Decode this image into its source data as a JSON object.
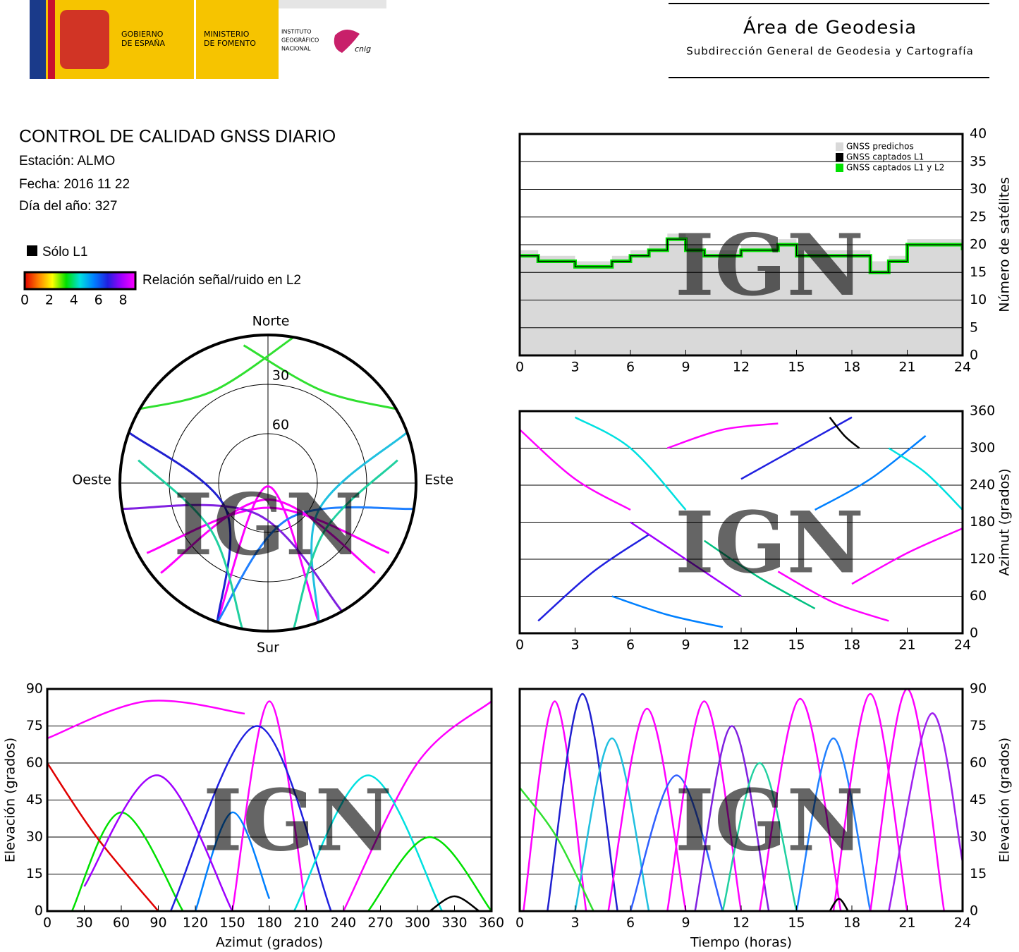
{
  "header": {
    "gov": [
      "GOBIERNO",
      "DE ESPAÑA"
    ],
    "ministry": [
      "MINISTERIO",
      "DE FOMENTO"
    ],
    "institute": [
      "INSTITUTO",
      "GEOGRÁFICO",
      "NACIONAL"
    ],
    "cnig": "cnig",
    "area": "Área de Geodesia",
    "sub": "Subdirección General de Geodesia y Cartografía"
  },
  "report": {
    "title": "CONTROL DE CALIDAD GNSS DIARIO",
    "station": "Estación: ALMO",
    "date": "Fecha: 2016 11 22",
    "doy": "Día del año: 327"
  },
  "legend": {
    "l1_only": "Sólo L1",
    "l1_color": "#000000",
    "colorbar": {
      "label": "Relación señal/ruido en L2",
      "ticks": [
        0,
        2,
        4,
        6,
        8
      ],
      "lim": [
        0,
        9
      ],
      "colors": [
        "#e00000",
        "#ff8000",
        "#ffff00",
        "#00e000",
        "#00e0e0",
        "#0080ff",
        "#2020e0",
        "#a000ff",
        "#ff00ff"
      ]
    }
  },
  "watermark": "IGN",
  "chart_data": [
    {
      "type": "step",
      "ylabel": "Número de satélites",
      "xlim": [
        0,
        24
      ],
      "ylim": [
        0,
        40
      ],
      "xticks": [
        0,
        3,
        6,
        9,
        12,
        15,
        18,
        21,
        24
      ],
      "yticks": [
        0,
        5,
        10,
        15,
        20,
        25,
        30,
        35,
        40
      ],
      "y_axis_side": "right",
      "grid": true,
      "legend": "upper right",
      "x": [
        0,
        1,
        2,
        3,
        4,
        5,
        6,
        7,
        8,
        9,
        10,
        11,
        12,
        13,
        14,
        15,
        16,
        17,
        18,
        19,
        20,
        21,
        22,
        23,
        24
      ],
      "series": [
        {
          "name": "GNSS predichos",
          "color": "#d9d9d9",
          "values": [
            19,
            18,
            18,
            17,
            17,
            18,
            19,
            20,
            22,
            20,
            19,
            19,
            20,
            20,
            21,
            19,
            19,
            19,
            19,
            17,
            18,
            21,
            21,
            21,
            20
          ]
        },
        {
          "name": "GNSS captados L1",
          "color": "#000000",
          "values": [
            18,
            17,
            17,
            16,
            16,
            17,
            18,
            19,
            21,
            19,
            18,
            18,
            19,
            19,
            20,
            18,
            18,
            18,
            18,
            15,
            17,
            20,
            20,
            20,
            19
          ]
        },
        {
          "name": "GNSS captados L1 y L2",
          "color": "#00e000",
          "values": [
            18,
            17,
            17,
            16,
            16,
            17,
            18,
            19,
            21,
            19,
            18,
            18,
            19,
            19,
            20,
            18,
            18,
            18,
            18,
            15,
            17,
            20,
            20,
            20,
            19
          ]
        }
      ]
    },
    {
      "type": "line",
      "ylabel": "Azimut (grados)",
      "xlim": [
        0,
        24
      ],
      "ylim": [
        0,
        360
      ],
      "xticks": [
        0,
        3,
        6,
        9,
        12,
        15,
        18,
        21,
        24
      ],
      "yticks": [
        0,
        60,
        120,
        180,
        240,
        300,
        360
      ],
      "y_axis_side": "right",
      "grid": true,
      "series": [
        {
          "color": "#ff00ff",
          "x": [
            0,
            3,
            6
          ],
          "values": [
            330,
            250,
            200
          ]
        },
        {
          "color": "#2020e0",
          "x": [
            1,
            4,
            7
          ],
          "values": [
            20,
            100,
            160
          ]
        },
        {
          "color": "#00e0e0",
          "x": [
            3,
            6,
            9
          ],
          "values": [
            350,
            300,
            200
          ]
        },
        {
          "color": "#0080ff",
          "x": [
            5,
            8,
            11
          ],
          "values": [
            60,
            30,
            10
          ]
        },
        {
          "color": "#a000ff",
          "x": [
            6,
            9,
            12
          ],
          "values": [
            180,
            120,
            60
          ]
        },
        {
          "color": "#ff00ff",
          "x": [
            8,
            11,
            14
          ],
          "values": [
            300,
            330,
            340
          ]
        },
        {
          "color": "#00c080",
          "x": [
            10,
            13,
            16
          ],
          "values": [
            150,
            90,
            40
          ]
        },
        {
          "color": "#2020e0",
          "x": [
            12,
            15,
            18
          ],
          "values": [
            250,
            300,
            350
          ]
        },
        {
          "color": "#ff00ff",
          "x": [
            14,
            17,
            20
          ],
          "values": [
            100,
            50,
            20
          ]
        },
        {
          "color": "#0080ff",
          "x": [
            16,
            19,
            22
          ],
          "values": [
            200,
            250,
            320
          ]
        },
        {
          "color": "#ff00ff",
          "x": [
            18,
            21,
            24
          ],
          "values": [
            80,
            130,
            170
          ]
        },
        {
          "color": "#00e0e0",
          "x": [
            20,
            22,
            24
          ],
          "values": [
            300,
            260,
            200
          ]
        },
        {
          "color": "#000000",
          "x": [
            16.8,
            17.6,
            18.4
          ],
          "values": [
            350,
            320,
            300
          ]
        }
      ]
    },
    {
      "type": "line",
      "xlabel": "Azimut (grados)",
      "ylabel": "Elevación (grados)",
      "xlim": [
        0,
        360
      ],
      "ylim": [
        0,
        90
      ],
      "xticks": [
        0,
        30,
        60,
        90,
        120,
        150,
        180,
        210,
        240,
        270,
        300,
        330,
        360
      ],
      "yticks": [
        0,
        15,
        30,
        45,
        60,
        75,
        90
      ],
      "y_axis_side": "left",
      "grid": true,
      "series": [
        {
          "color": "#00e000",
          "x": [
            20,
            60,
            110
          ],
          "values": [
            0,
            40,
            0
          ]
        },
        {
          "color": "#e00000",
          "x": [
            0,
            40,
            90
          ],
          "values": [
            60,
            30,
            0
          ]
        },
        {
          "color": "#ff00ff",
          "x": [
            150,
            180,
            210
          ],
          "values": [
            0,
            85,
            0
          ]
        },
        {
          "color": "#2020e0",
          "x": [
            100,
            170,
            230
          ],
          "values": [
            0,
            75,
            0
          ]
        },
        {
          "color": "#ff00ff",
          "x": [
            0,
            80,
            160
          ],
          "values": [
            70,
            85,
            80
          ]
        },
        {
          "color": "#ff00ff",
          "x": [
            240,
            300,
            360
          ],
          "values": [
            0,
            60,
            85
          ]
        },
        {
          "color": "#00e0e0",
          "x": [
            200,
            260,
            320
          ],
          "values": [
            0,
            55,
            0
          ]
        },
        {
          "color": "#0080ff",
          "x": [
            120,
            150,
            180
          ],
          "values": [
            0,
            40,
            5
          ]
        },
        {
          "color": "#00e000",
          "x": [
            260,
            310,
            360
          ],
          "values": [
            0,
            30,
            0
          ]
        },
        {
          "color": "#a000ff",
          "x": [
            30,
            90,
            150
          ],
          "values": [
            10,
            55,
            0
          ]
        },
        {
          "color": "#000000",
          "x": [
            310,
            330,
            350
          ],
          "values": [
            0,
            6,
            0
          ]
        }
      ]
    },
    {
      "type": "line",
      "xlabel": "Tiempo (horas)",
      "ylabel": "Elevación (grados)",
      "xlim": [
        0,
        24
      ],
      "ylim": [
        0,
        90
      ],
      "xticks": [
        0,
        3,
        6,
        9,
        12,
        15,
        18,
        21,
        24
      ],
      "yticks": [
        0,
        15,
        30,
        45,
        60,
        75,
        90
      ],
      "y_axis_side": "right",
      "grid": true,
      "series": [
        {
          "color": "#ff00ff",
          "x": [
            0.2,
            1.9,
            3.6
          ],
          "values": [
            0,
            85,
            0
          ]
        },
        {
          "color": "#2020d0",
          "x": [
            1.5,
            3.4,
            5.3
          ],
          "values": [
            0,
            88,
            0
          ]
        },
        {
          "color": "#20c0e0",
          "x": [
            3,
            5,
            7
          ],
          "values": [
            0,
            70,
            0
          ]
        },
        {
          "color": "#ff00ff",
          "x": [
            4.8,
            6.9,
            9
          ],
          "values": [
            0,
            82,
            0
          ]
        },
        {
          "color": "#3060ff",
          "x": [
            6,
            8.5,
            11
          ],
          "values": [
            0,
            55,
            0
          ]
        },
        {
          "color": "#ff00ff",
          "x": [
            8,
            10,
            12
          ],
          "values": [
            0,
            85,
            0
          ]
        },
        {
          "color": "#8020e0",
          "x": [
            9.5,
            11.5,
            13.5
          ],
          "values": [
            0,
            75,
            0
          ]
        },
        {
          "color": "#20d0a0",
          "x": [
            11,
            13,
            15
          ],
          "values": [
            0,
            60,
            0
          ]
        },
        {
          "color": "#ff00ff",
          "x": [
            13,
            15.2,
            17.4
          ],
          "values": [
            0,
            86,
            0
          ]
        },
        {
          "color": "#2080ff",
          "x": [
            15,
            17,
            19
          ],
          "values": [
            0,
            70,
            0
          ]
        },
        {
          "color": "#ff00ff",
          "x": [
            17,
            19,
            21
          ],
          "values": [
            0,
            88,
            0
          ]
        },
        {
          "color": "#ff00ff",
          "x": [
            19,
            21,
            23
          ],
          "values": [
            0,
            90,
            0
          ]
        },
        {
          "color": "#a020f0",
          "x": [
            20,
            22.3,
            24
          ],
          "values": [
            0,
            80,
            20
          ]
        },
        {
          "color": "#30e030",
          "x": [
            0,
            2,
            4
          ],
          "values": [
            50,
            30,
            0
          ]
        },
        {
          "color": "#000000",
          "x": [
            16.8,
            17.3,
            17.8
          ],
          "values": [
            0,
            5,
            0
          ]
        }
      ]
    },
    {
      "type": "polar",
      "labels": {
        "north": "Norte",
        "south": "Sur",
        "east": "Este",
        "west": "Oeste"
      },
      "rlim": [
        90,
        0
      ],
      "rticks": [
        30,
        60
      ],
      "series": [
        {
          "color": "#ff00ff",
          "az": [
            240,
            180,
            120
          ],
          "el": [
            5,
            75,
            5
          ]
        },
        {
          "color": "#ff00ff",
          "az": [
            200,
            180,
            160
          ],
          "el": [
            0,
            88,
            0
          ]
        },
        {
          "color": "#2020d0",
          "az": [
            290,
            240,
            200
          ],
          "el": [
            0,
            60,
            0
          ]
        },
        {
          "color": "#20c0e0",
          "az": [
            70,
            120,
            160
          ],
          "el": [
            0,
            55,
            0
          ]
        },
        {
          "color": "#30e030",
          "az": [
            300,
            330,
            10
          ],
          "el": [
            0,
            25,
            0
          ]
        },
        {
          "color": "#30e030",
          "az": [
            60,
            30,
            350
          ],
          "el": [
            0,
            25,
            5
          ]
        },
        {
          "color": "#8020e0",
          "az": [
            260,
            200,
            150
          ],
          "el": [
            0,
            70,
            0
          ]
        },
        {
          "color": "#2080ff",
          "az": [
            100,
            150,
            200
          ],
          "el": [
            0,
            65,
            0
          ]
        },
        {
          "color": "#ff00ff",
          "az": [
            130,
            180,
            230
          ],
          "el": [
            5,
            80,
            5
          ]
        },
        {
          "color": "#20d0a0",
          "az": [
            280,
            230,
            190
          ],
          "el": [
            10,
            45,
            0
          ]
        },
        {
          "color": "#20d0a0",
          "az": [
            80,
            130,
            170
          ],
          "el": [
            10,
            45,
            0
          ]
        }
      ]
    }
  ]
}
